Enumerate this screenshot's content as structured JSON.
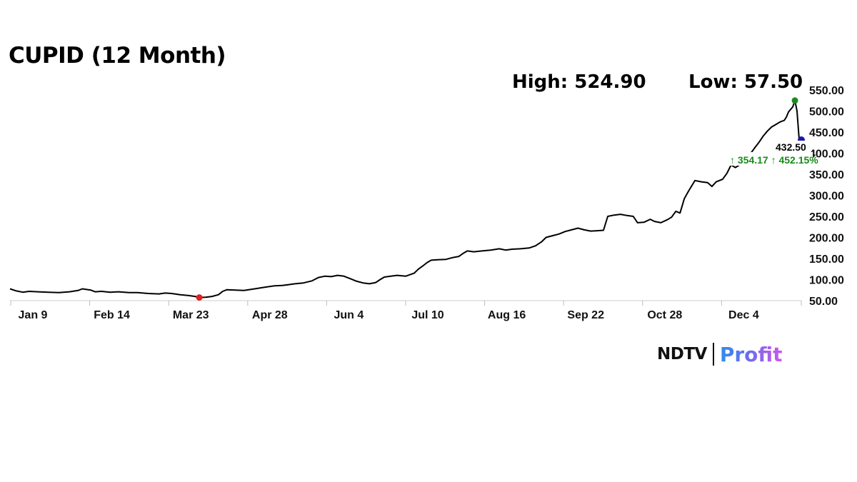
{
  "header": {
    "title": "CUPID (12 Month)",
    "high_text": "High: 524.90",
    "low_text": "Low: 57.50"
  },
  "logo": {
    "ndtv": "NDTV",
    "profit": "Profit"
  },
  "chart_data": {
    "type": "line",
    "title": "CUPID (12 Month)",
    "xlabel": "",
    "ylabel": "",
    "x_tick_labels": [
      "Jan 9",
      "Feb 14",
      "Mar 23",
      "Apr 28",
      "Jun 4",
      "Jul 10",
      "Aug 16",
      "Sep 22",
      "Oct 28",
      "Dec 4"
    ],
    "y_tick_labels": [
      "50.00",
      "100.00",
      "150.00",
      "200.00",
      "250.00",
      "300.00",
      "350.00",
      "400.00",
      "450.00",
      "500.00",
      "550.00"
    ],
    "ylim": [
      50,
      550
    ],
    "grid": false,
    "high": 524.9,
    "low": 57.5,
    "last_value": 432.5,
    "last_value_label": "432.50",
    "change_label": "↑ 354.17 ↑ 452.15%",
    "colors": {
      "line": "#000000",
      "high_marker": "#1e8a1e",
      "low_marker": "#e02020",
      "last_marker": "#1a1aa8",
      "change": "#1a8a1a"
    },
    "series": [
      {
        "points": [
          [
            0,
            78
          ],
          [
            3,
            73
          ],
          [
            6,
            70
          ],
          [
            9,
            72
          ],
          [
            13,
            71
          ],
          [
            18,
            70
          ],
          [
            23,
            69
          ],
          [
            28,
            71
          ],
          [
            32,
            74
          ],
          [
            34,
            78
          ],
          [
            38,
            75
          ],
          [
            40,
            71
          ],
          [
            43,
            72
          ],
          [
            47,
            70
          ],
          [
            51,
            71
          ],
          [
            56,
            69
          ],
          [
            60,
            69
          ],
          [
            65,
            67
          ],
          [
            70,
            66
          ],
          [
            73,
            68
          ],
          [
            76,
            67
          ],
          [
            80,
            64
          ],
          [
            84,
            62
          ],
          [
            87,
            60
          ],
          [
            89,
            57.5
          ],
          [
            92,
            58
          ],
          [
            95,
            60
          ],
          [
            98,
            64
          ],
          [
            100,
            72
          ],
          [
            102,
            76
          ],
          [
            106,
            75
          ],
          [
            110,
            74
          ],
          [
            115,
            78
          ],
          [
            120,
            82
          ],
          [
            124,
            85
          ],
          [
            128,
            86
          ],
          [
            131,
            88
          ],
          [
            134,
            90
          ],
          [
            138,
            92
          ],
          [
            142,
            97
          ],
          [
            145,
            105
          ],
          [
            148,
            108
          ],
          [
            151,
            107
          ],
          [
            154,
            110
          ],
          [
            157,
            108
          ],
          [
            160,
            102
          ],
          [
            163,
            96
          ],
          [
            166,
            92
          ],
          [
            169,
            90
          ],
          [
            172,
            93
          ],
          [
            174,
            100
          ],
          [
            176,
            106
          ],
          [
            179,
            108
          ],
          [
            182,
            110
          ],
          [
            186,
            108
          ],
          [
            190,
            115
          ],
          [
            192,
            125
          ],
          [
            194,
            132
          ],
          [
            196,
            140
          ],
          [
            198,
            146
          ],
          [
            201,
            147
          ],
          [
            205,
            148
          ],
          [
            208,
            152
          ],
          [
            211,
            155
          ],
          [
            213,
            162
          ],
          [
            215,
            168
          ],
          [
            218,
            166
          ],
          [
            222,
            168
          ],
          [
            226,
            170
          ],
          [
            230,
            173
          ],
          [
            233,
            170
          ],
          [
            236,
            172
          ],
          [
            240,
            173
          ],
          [
            244,
            175
          ],
          [
            247,
            180
          ],
          [
            250,
            190
          ],
          [
            252,
            200
          ],
          [
            255,
            204
          ],
          [
            258,
            208
          ],
          [
            261,
            214
          ],
          [
            264,
            218
          ],
          [
            267,
            222
          ],
          [
            270,
            218
          ],
          [
            273,
            215
          ],
          [
            276,
            216
          ],
          [
            279,
            217
          ],
          [
            281,
            250
          ],
          [
            284,
            253
          ],
          [
            287,
            255
          ],
          [
            290,
            252
          ],
          [
            293,
            250
          ],
          [
            295,
            235
          ],
          [
            298,
            236
          ],
          [
            301,
            243
          ],
          [
            303,
            238
          ],
          [
            306,
            235
          ],
          [
            309,
            242
          ],
          [
            311,
            248
          ],
          [
            313,
            262
          ],
          [
            315,
            258
          ],
          [
            317,
            292
          ],
          [
            319,
            310
          ],
          [
            322,
            335
          ],
          [
            325,
            332
          ],
          [
            328,
            330
          ],
          [
            330,
            321
          ],
          [
            332,
            332
          ],
          [
            335,
            338
          ],
          [
            337,
            352
          ],
          [
            339,
            372
          ],
          [
            341,
            366
          ],
          [
            343,
            372
          ],
          [
            346,
            390
          ],
          [
            348,
            398
          ],
          [
            350,
            412
          ],
          [
            352,
            425
          ],
          [
            354,
            440
          ],
          [
            356,
            452
          ],
          [
            358,
            462
          ],
          [
            360,
            468
          ],
          [
            362,
            474
          ],
          [
            364,
            478
          ],
          [
            365,
            486
          ],
          [
            366,
            498
          ],
          [
            368,
            510
          ],
          [
            369,
            524.9
          ],
          [
            370,
            500
          ],
          [
            371,
            432.5
          ]
        ]
      }
    ]
  }
}
